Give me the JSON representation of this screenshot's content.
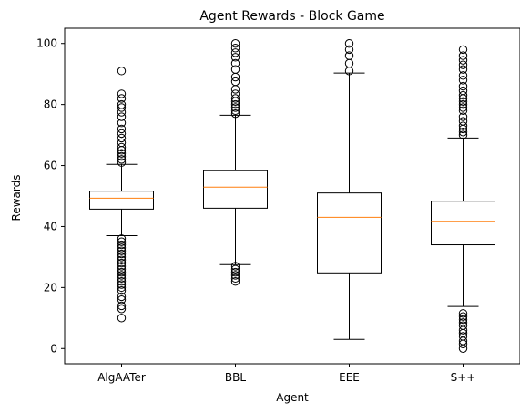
{
  "chart_data": {
    "type": "box",
    "title": "Agent Rewards - Block Game",
    "xlabel": "Agent",
    "ylabel": "Rewards",
    "ylim": [
      -5,
      105
    ],
    "yticks": [
      0,
      20,
      40,
      60,
      80,
      100
    ],
    "categories": [
      "AlgAATer",
      "BBL",
      "EEE",
      "S++"
    ],
    "grid": false,
    "colors": {
      "box": "#000000",
      "median": "#ff7f0e",
      "outlier": "#000000",
      "background": "#ffffff"
    },
    "boxes": [
      {
        "name": "AlgAATer",
        "whisker_low": 37,
        "q1": 45.7,
        "median": 49.3,
        "q3": 51.6,
        "whisker_high": 60.4,
        "outliers": [
          91,
          83.5,
          82,
          80,
          79,
          77.5,
          76,
          74,
          72,
          70.5,
          69,
          67.5,
          66,
          65,
          64,
          63,
          62,
          61,
          36,
          35,
          34,
          33,
          32,
          31,
          30,
          29,
          28,
          27,
          26,
          25,
          24,
          23,
          22,
          21,
          20,
          19,
          17,
          16,
          14,
          13,
          10
        ]
      },
      {
        "name": "BBL",
        "whisker_low": 27.5,
        "q1": 46,
        "median": 52.9,
        "q3": 58.3,
        "whisker_high": 76.5,
        "outliers": [
          100,
          98.5,
          97,
          95.5,
          93.5,
          91.5,
          89,
          87.5,
          85,
          83.5,
          82,
          81,
          80,
          79,
          78,
          77,
          27,
          26,
          25,
          24,
          23,
          22
        ]
      },
      {
        "name": "EEE",
        "whisker_low": 3,
        "q1": 24.8,
        "median": 43,
        "q3": 51,
        "whisker_high": 90.3,
        "outliers": [
          100,
          98,
          96,
          93.5,
          91
        ]
      },
      {
        "name": "S++",
        "whisker_low": 13.8,
        "q1": 34,
        "median": 41.7,
        "q3": 48.3,
        "whisker_high": 69,
        "outliers": [
          98,
          96,
          94.5,
          93,
          91.5,
          89.5,
          88,
          86,
          84.5,
          83,
          82,
          81,
          80,
          79,
          78,
          76,
          74.5,
          73,
          72,
          71,
          70,
          11.5,
          10.5,
          9.5,
          8.5,
          7.5,
          6,
          5,
          4,
          2.5,
          1.5,
          0
        ]
      }
    ]
  }
}
